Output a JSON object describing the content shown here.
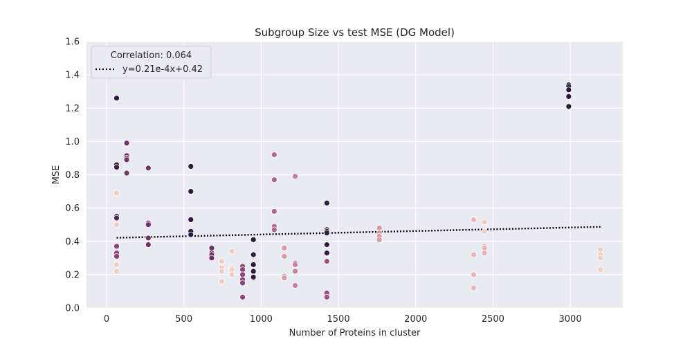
{
  "chart_data": {
    "type": "scatter",
    "title": "Subgroup Size vs test MSE (DG Model)",
    "xlabel": "Number of Proteins in cluster",
    "ylabel": "MSE",
    "xlim": [
      -130,
      3340
    ],
    "ylim": [
      0,
      1.6
    ],
    "xticks": [
      0,
      500,
      1000,
      1500,
      2000,
      2500,
      3000
    ],
    "yticks": [
      0.0,
      0.2,
      0.4,
      0.6,
      0.8,
      1.0,
      1.2,
      1.4,
      1.6
    ],
    "grid": true,
    "legend": {
      "placement": "top-left",
      "title": "Correlation: 0.064",
      "entries": [
        {
          "label": "y=0.21e-4x+0.42",
          "style": "dotted"
        }
      ]
    },
    "trendline": {
      "slope": 2.1e-05,
      "intercept": 0.42,
      "x_range": [
        65,
        3195
      ]
    },
    "colors": {
      "background": "#eaeaf2",
      "grid": "#ffffff",
      "trend": "#000000",
      "point_stroke": "#ffffff",
      "palette_light": "#f1cdc0",
      "palette_mid": "#d99aa6",
      "palette_pinkish": "#b06690",
      "palette_purple": "#6e3368",
      "palette_dark": "#2d1a3e"
    },
    "points": [
      {
        "x": 65,
        "y": 1.26,
        "c": "#2d1a3e"
      },
      {
        "x": 65,
        "y": 0.86,
        "c": "#2d1a3e"
      },
      {
        "x": 65,
        "y": 0.845,
        "c": "#3b1f47"
      },
      {
        "x": 65,
        "y": 0.55,
        "c": "#2d1a3e"
      },
      {
        "x": 65,
        "y": 0.54,
        "c": "#4a2755"
      },
      {
        "x": 65,
        "y": 0.69,
        "c": "#f1cdc0"
      },
      {
        "x": 65,
        "y": 0.5,
        "c": "#f1cdc0"
      },
      {
        "x": 65,
        "y": 0.37,
        "c": "#8a4479"
      },
      {
        "x": 65,
        "y": 0.33,
        "c": "#8a4479"
      },
      {
        "x": 65,
        "y": 0.31,
        "c": "#8a4479"
      },
      {
        "x": 65,
        "y": 0.26,
        "c": "#f1cdc0"
      },
      {
        "x": 65,
        "y": 0.22,
        "c": "#f1cdc0"
      },
      {
        "x": 130,
        "y": 0.99,
        "c": "#6e3368"
      },
      {
        "x": 130,
        "y": 0.915,
        "c": "#6e3368"
      },
      {
        "x": 130,
        "y": 0.9,
        "c": "#6e3368"
      },
      {
        "x": 130,
        "y": 0.89,
        "c": "#6e3368"
      },
      {
        "x": 130,
        "y": 0.81,
        "c": "#6e3368"
      },
      {
        "x": 270,
        "y": 0.84,
        "c": "#6e3368"
      },
      {
        "x": 270,
        "y": 0.51,
        "c": "#6e3368"
      },
      {
        "x": 270,
        "y": 0.5,
        "c": "#6e3368"
      },
      {
        "x": 270,
        "y": 0.42,
        "c": "#6e3368"
      },
      {
        "x": 270,
        "y": 0.38,
        "c": "#6e3368"
      },
      {
        "x": 545,
        "y": 0.85,
        "c": "#2d1a3e"
      },
      {
        "x": 545,
        "y": 0.7,
        "c": "#2d1a3e"
      },
      {
        "x": 545,
        "y": 0.53,
        "c": "#2d1a3e"
      },
      {
        "x": 545,
        "y": 0.46,
        "c": "#2d1a3e"
      },
      {
        "x": 545,
        "y": 0.44,
        "c": "#2d1a3e"
      },
      {
        "x": 680,
        "y": 0.36,
        "c": "#6e3368"
      },
      {
        "x": 680,
        "y": 0.33,
        "c": "#6e3368"
      },
      {
        "x": 680,
        "y": 0.32,
        "c": "#6e3368"
      },
      {
        "x": 680,
        "y": 0.3,
        "c": "#6e3368"
      },
      {
        "x": 745,
        "y": 0.28,
        "c": "#f1cdc0"
      },
      {
        "x": 745,
        "y": 0.24,
        "c": "#f1cdc0"
      },
      {
        "x": 745,
        "y": 0.22,
        "c": "#f1cdc0"
      },
      {
        "x": 745,
        "y": 0.16,
        "c": "#f1cdc0"
      },
      {
        "x": 810,
        "y": 0.34,
        "c": "#f1cdc0"
      },
      {
        "x": 810,
        "y": 0.24,
        "c": "#f1cdc0"
      },
      {
        "x": 810,
        "y": 0.23,
        "c": "#f1cdc0"
      },
      {
        "x": 810,
        "y": 0.2,
        "c": "#f1cdc0"
      },
      {
        "x": 880,
        "y": 0.25,
        "c": "#8a4479"
      },
      {
        "x": 880,
        "y": 0.23,
        "c": "#8a4479"
      },
      {
        "x": 880,
        "y": 0.2,
        "c": "#8a4479"
      },
      {
        "x": 880,
        "y": 0.17,
        "c": "#8a4479"
      },
      {
        "x": 880,
        "y": 0.15,
        "c": "#8a4479"
      },
      {
        "x": 880,
        "y": 0.065,
        "c": "#8a4479"
      },
      {
        "x": 950,
        "y": 0.41,
        "c": "#2d1a3e"
      },
      {
        "x": 950,
        "y": 0.32,
        "c": "#2d1a3e"
      },
      {
        "x": 950,
        "y": 0.26,
        "c": "#2d1a3e"
      },
      {
        "x": 950,
        "y": 0.22,
        "c": "#2d1a3e"
      },
      {
        "x": 950,
        "y": 0.185,
        "c": "#2d1a3e"
      },
      {
        "x": 1085,
        "y": 0.92,
        "c": "#b06690"
      },
      {
        "x": 1085,
        "y": 0.77,
        "c": "#b06690"
      },
      {
        "x": 1085,
        "y": 0.58,
        "c": "#b06690"
      },
      {
        "x": 1085,
        "y": 0.49,
        "c": "#b06690"
      },
      {
        "x": 1085,
        "y": 0.47,
        "c": "#b06690"
      },
      {
        "x": 1150,
        "y": 0.36,
        "c": "#d99aa6"
      },
      {
        "x": 1150,
        "y": 0.31,
        "c": "#d99aa6"
      },
      {
        "x": 1150,
        "y": 0.19,
        "c": "#d99aa6"
      },
      {
        "x": 1150,
        "y": 0.18,
        "c": "#d99aa6"
      },
      {
        "x": 1220,
        "y": 0.79,
        "c": "#c97f9c"
      },
      {
        "x": 1220,
        "y": 0.27,
        "c": "#c97f9c"
      },
      {
        "x": 1220,
        "y": 0.26,
        "c": "#c97f9c"
      },
      {
        "x": 1220,
        "y": 0.22,
        "c": "#c97f9c"
      },
      {
        "x": 1220,
        "y": 0.135,
        "c": "#c97f9c"
      },
      {
        "x": 1425,
        "y": 0.63,
        "c": "#2d1a3e"
      },
      {
        "x": 1425,
        "y": 0.47,
        "c": "#2d1a3e"
      },
      {
        "x": 1425,
        "y": 0.46,
        "c": "#2d1a3e"
      },
      {
        "x": 1425,
        "y": 0.45,
        "c": "#2d1a3e"
      },
      {
        "x": 1425,
        "y": 0.38,
        "c": "#2d1a3e"
      },
      {
        "x": 1425,
        "y": 0.33,
        "c": "#2d1a3e"
      },
      {
        "x": 1425,
        "y": 0.28,
        "c": "#9d4f82"
      },
      {
        "x": 1425,
        "y": 0.09,
        "c": "#9d4f82"
      },
      {
        "x": 1425,
        "y": 0.065,
        "c": "#9d4f82"
      },
      {
        "x": 1765,
        "y": 0.48,
        "c": "#d99aa6"
      },
      {
        "x": 1765,
        "y": 0.45,
        "c": "#d99aa6"
      },
      {
        "x": 1765,
        "y": 0.43,
        "c": "#d99aa6"
      },
      {
        "x": 1765,
        "y": 0.41,
        "c": "#d99aa6"
      },
      {
        "x": 2375,
        "y": 0.535,
        "c": "#f1cdc0"
      },
      {
        "x": 2375,
        "y": 0.53,
        "c": "#eab5b4"
      },
      {
        "x": 2375,
        "y": 0.32,
        "c": "#eab5b4"
      },
      {
        "x": 2375,
        "y": 0.2,
        "c": "#eab5b4"
      },
      {
        "x": 2375,
        "y": 0.12,
        "c": "#eab5b4"
      },
      {
        "x": 2445,
        "y": 0.515,
        "c": "#f1cdc0"
      },
      {
        "x": 2445,
        "y": 0.46,
        "c": "#f1cdc0"
      },
      {
        "x": 2445,
        "y": 0.37,
        "c": "#eab5b4"
      },
      {
        "x": 2445,
        "y": 0.36,
        "c": "#eab5b4"
      },
      {
        "x": 2445,
        "y": 0.33,
        "c": "#eab5b4"
      },
      {
        "x": 2990,
        "y": 1.34,
        "c": "#2d1a3e"
      },
      {
        "x": 2990,
        "y": 1.33,
        "c": "#2d1a3e"
      },
      {
        "x": 2990,
        "y": 1.31,
        "c": "#2d1a3e"
      },
      {
        "x": 2990,
        "y": 1.27,
        "c": "#2d1a3e"
      },
      {
        "x": 2990,
        "y": 1.21,
        "c": "#2d1a3e"
      },
      {
        "x": 3195,
        "y": 0.35,
        "c": "#f1cdc0"
      },
      {
        "x": 3195,
        "y": 0.32,
        "c": "#f1cdc0"
      },
      {
        "x": 3195,
        "y": 0.3,
        "c": "#f1cdc0"
      },
      {
        "x": 3195,
        "y": 0.23,
        "c": "#f1cdc0"
      }
    ]
  }
}
